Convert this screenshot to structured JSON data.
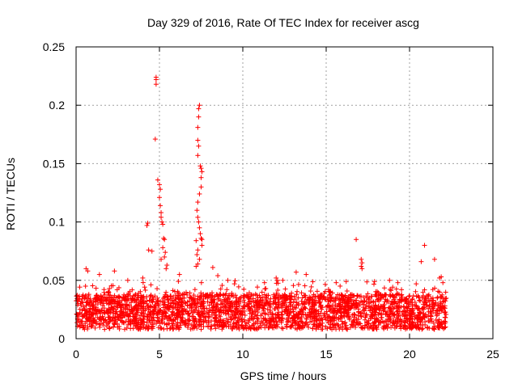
{
  "chart_data": {
    "type": "scatter",
    "title": "Day 329 of 2016, Rate Of TEC Index for receiver ascg",
    "xlabel": "GPS time / hours",
    "ylabel": "ROTI / TECUs",
    "xlim": [
      0,
      25
    ],
    "ylim": [
      0,
      0.25
    ],
    "xticks": [
      0,
      5,
      10,
      15,
      20,
      25
    ],
    "yticks": [
      0,
      0.05,
      0.1,
      0.15,
      0.2,
      0.25
    ],
    "xtick_labels": [
      "0",
      "5",
      "10",
      "15",
      "20",
      "25"
    ],
    "ytick_labels": [
      "0",
      "0.05",
      "0.1",
      "0.15",
      "0.2",
      "0.25"
    ],
    "grid": true,
    "marker": "+",
    "series_color": "#ff0000",
    "series": [
      {
        "name": "ROTI",
        "points": [
          [
            4.8,
            0.224
          ],
          [
            4.8,
            0.222
          ],
          [
            4.8,
            0.218
          ],
          [
            4.75,
            0.171
          ],
          [
            4.9,
            0.136
          ],
          [
            5.0,
            0.132
          ],
          [
            5.05,
            0.128
          ],
          [
            5.0,
            0.121
          ],
          [
            5.05,
            0.114
          ],
          [
            5.1,
            0.108
          ],
          [
            5.1,
            0.104
          ],
          [
            5.15,
            0.1
          ],
          [
            5.2,
            0.098
          ],
          [
            4.3,
            0.099
          ],
          [
            4.25,
            0.097
          ],
          [
            5.25,
            0.086
          ],
          [
            5.3,
            0.085
          ],
          [
            5.2,
            0.078
          ],
          [
            5.35,
            0.074
          ],
          [
            5.3,
            0.07
          ],
          [
            4.35,
            0.076
          ],
          [
            4.55,
            0.075
          ],
          [
            5.45,
            0.063
          ],
          [
            5.4,
            0.06
          ],
          [
            5.1,
            0.068
          ],
          [
            7.4,
            0.2
          ],
          [
            7.35,
            0.197
          ],
          [
            7.35,
            0.19
          ],
          [
            7.3,
            0.181
          ],
          [
            7.3,
            0.17
          ],
          [
            7.35,
            0.165
          ],
          [
            7.3,
            0.157
          ],
          [
            7.45,
            0.148
          ],
          [
            7.5,
            0.146
          ],
          [
            7.55,
            0.143
          ],
          [
            7.5,
            0.138
          ],
          [
            7.5,
            0.13
          ],
          [
            7.4,
            0.124
          ],
          [
            7.3,
            0.117
          ],
          [
            7.25,
            0.11
          ],
          [
            7.3,
            0.104
          ],
          [
            7.35,
            0.1
          ],
          [
            7.4,
            0.095
          ],
          [
            7.45,
            0.09
          ],
          [
            7.5,
            0.086
          ],
          [
            7.2,
            0.084
          ],
          [
            7.55,
            0.08
          ],
          [
            7.3,
            0.076
          ],
          [
            7.25,
            0.072
          ],
          [
            7.4,
            0.068
          ],
          [
            7.3,
            0.064
          ],
          [
            7.2,
            0.062
          ],
          [
            7.55,
            0.085
          ],
          [
            8.2,
            0.061
          ],
          [
            16.8,
            0.085
          ],
          [
            17.1,
            0.068
          ],
          [
            17.15,
            0.065
          ],
          [
            17.1,
            0.062
          ],
          [
            17.15,
            0.06
          ],
          [
            20.9,
            0.08
          ],
          [
            20.7,
            0.066
          ],
          [
            21.5,
            0.068
          ],
          [
            21.8,
            0.052
          ],
          [
            21.9,
            0.053
          ],
          [
            0.6,
            0.06
          ],
          [
            0.7,
            0.058
          ],
          [
            1.4,
            0.055
          ],
          [
            2.3,
            0.058
          ],
          [
            3.1,
            0.05
          ],
          [
            4.0,
            0.052
          ],
          [
            6.2,
            0.055
          ],
          [
            8.5,
            0.054
          ],
          [
            9.1,
            0.05
          ],
          [
            9.5,
            0.047
          ],
          [
            11.3,
            0.048
          ],
          [
            12.0,
            0.052
          ],
          [
            12.4,
            0.05
          ],
          [
            13.2,
            0.057
          ],
          [
            13.8,
            0.055
          ],
          [
            15.6,
            0.048
          ],
          [
            16.2,
            0.049
          ],
          [
            17.9,
            0.049
          ],
          [
            18.8,
            0.05
          ],
          [
            19.3,
            0.048
          ],
          [
            20.4,
            0.047
          ],
          [
            22.0,
            0.048
          ]
        ]
      }
    ]
  }
}
